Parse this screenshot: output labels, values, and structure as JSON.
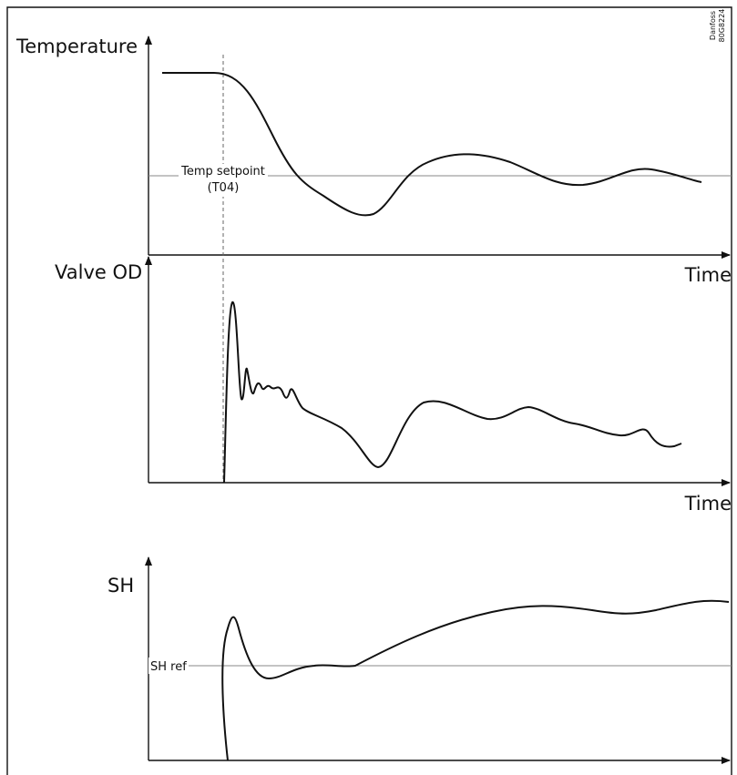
{
  "panels": [
    {
      "y_label": "Temperature",
      "x_label": "Time",
      "reference": [
        "Temp setpoint",
        "(T04)"
      ]
    },
    {
      "y_label": "Valve OD",
      "x_label": "Time"
    },
    {
      "y_label": "SH",
      "reference": [
        "SH ref"
      ]
    }
  ],
  "credit": [
    "Danfoss",
    "80G8224"
  ]
}
